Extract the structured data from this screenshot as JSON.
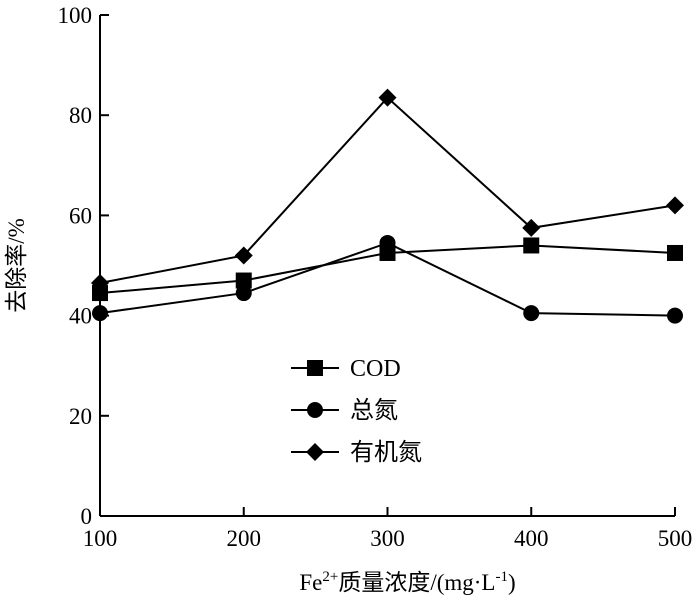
{
  "chart_data": {
    "type": "line",
    "x": [
      100,
      200,
      300,
      400,
      500
    ],
    "xlim": [
      100,
      500
    ],
    "ylim": [
      0,
      100
    ],
    "xticks": [
      "100",
      "200",
      "300",
      "400",
      "500"
    ],
    "yticks": [
      "0",
      "20",
      "40",
      "60",
      "80",
      "100"
    ],
    "xlabel": {
      "prefix": "Fe",
      "sup": "2+",
      "middle": "质量浓度/(mg·L",
      "sup2": "-1",
      "suffix": ")"
    },
    "ylabel": "去除率/%",
    "grid": false,
    "legend_position": "center-left",
    "series": [
      {
        "name": "COD",
        "marker": "square",
        "values": [
          44.5,
          47,
          52.5,
          54,
          52.5
        ]
      },
      {
        "name": "总氮",
        "marker": "circle",
        "values": [
          40.5,
          44.5,
          54.5,
          40.5,
          40
        ]
      },
      {
        "name": "有机氮",
        "marker": "diamond",
        "values": [
          46.5,
          52,
          83.5,
          57.5,
          62
        ]
      }
    ],
    "colors": {
      "line": "#000000",
      "marker": "#000000"
    }
  }
}
